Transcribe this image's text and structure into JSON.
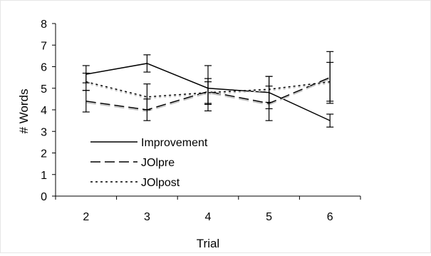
{
  "chart_data": {
    "type": "line",
    "xlabel": "Trial",
    "ylabel": "# Words",
    "x": [
      2,
      3,
      4,
      5,
      6
    ],
    "ylim": [
      0,
      8
    ],
    "yticks": [
      0,
      1,
      2,
      3,
      4,
      5,
      6,
      7,
      8
    ],
    "grid": false,
    "legend_placement": "bottom-left",
    "series": [
      {
        "name": "Improvement",
        "values": [
          5.65,
          6.15,
          5.0,
          4.8,
          3.5
        ],
        "errors": [
          0.4,
          0.4,
          1.05,
          0.75,
          0.3
        ],
        "style": "solid",
        "color": "#000000"
      },
      {
        "name": "JOlpre",
        "values": [
          4.4,
          4.0,
          4.85,
          4.3,
          5.5
        ],
        "errors": [
          0.5,
          0.5,
          0.6,
          0.8,
          1.2
        ],
        "style": "dashed",
        "color": "#000000"
      },
      {
        "name": "JOlpost",
        "values": [
          5.3,
          4.6,
          4.8,
          4.95,
          5.3
        ],
        "errors": [
          0.4,
          0.6,
          0.5,
          0.6,
          0.9
        ],
        "style": "dotted",
        "color": "#000000"
      }
    ]
  }
}
